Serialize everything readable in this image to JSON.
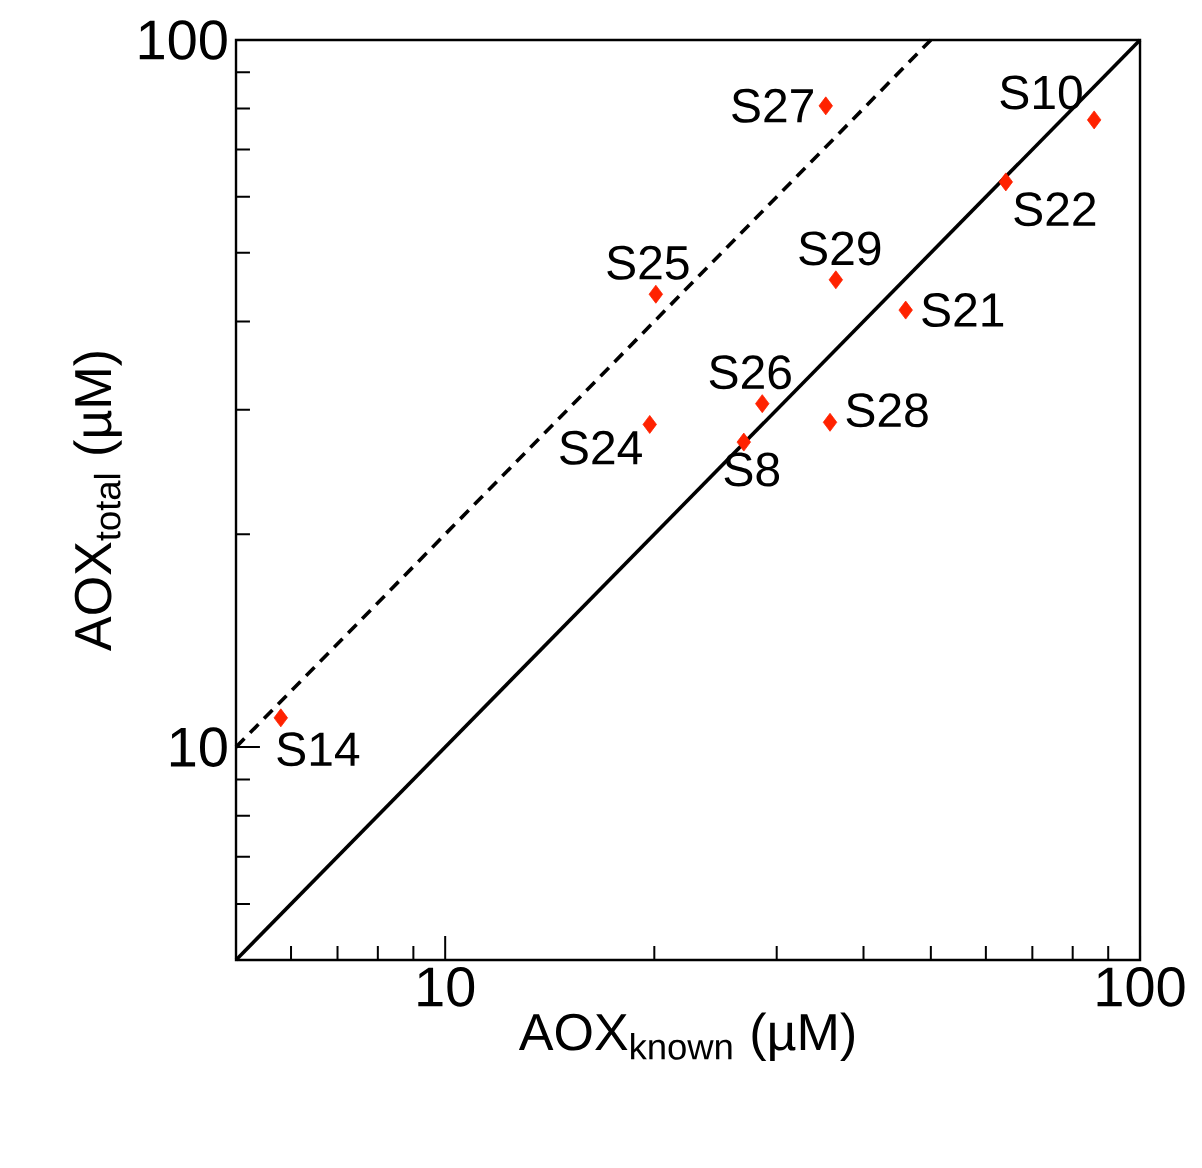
{
  "chart_data": {
    "type": "scatter",
    "xlabel": "AOX$_{known}$ (µM)",
    "ylabel": "AOX$_{total}$ (µM)",
    "log": "xy",
    "xlim": [
      5,
      100
    ],
    "ylim": [
      5,
      100
    ],
    "xticks": [
      10,
      100
    ],
    "yticks": [
      10,
      100
    ],
    "series": [
      {
        "color": "#ff2200",
        "marker": "diamond",
        "x": [
          5.8,
          19.7,
          20.1,
          35.3,
          85.9,
          64.1,
          36.5,
          46.0,
          28.6,
          35.8,
          26.9
        ],
        "values": [
          11.0,
          28.6,
          43.7,
          80.7,
          77.1,
          63.0,
          45.8,
          41.5,
          30.6,
          28.8,
          27.0
        ]
      },
      {
        "type": "line",
        "color": "#000000",
        "marker": "none",
        "line_style": "solid",
        "x": [
          5,
          100
        ],
        "values": [
          5,
          100
        ]
      },
      {
        "type": "line",
        "color": "#000000",
        "marker": "none",
        "line_style": "dashed",
        "x": [
          5,
          50
        ],
        "values": [
          10,
          100
        ]
      }
    ],
    "annotations": [
      {
        "text": "S14",
        "x": 5.8,
        "y": 11.0
      },
      {
        "text": "S24",
        "x": 19.7,
        "y": 28.6
      },
      {
        "text": "S25",
        "x": 20.1,
        "y": 43.7
      },
      {
        "text": "S27",
        "x": 35.3,
        "y": 80.7
      },
      {
        "text": "S10",
        "x": 85.9,
        "y": 77.1
      },
      {
        "text": "S22",
        "x": 64.1,
        "y": 63.0
      },
      {
        "text": "S29",
        "x": 36.5,
        "y": 45.8
      },
      {
        "text": "S21",
        "x": 46.0,
        "y": 41.5
      },
      {
        "text": "S26",
        "x": 28.6,
        "y": 30.6
      },
      {
        "text": "S28",
        "x": 35.8,
        "y": 28.8
      },
      {
        "text": "S8",
        "x": 26.9,
        "y": 27.0
      }
    ]
  }
}
